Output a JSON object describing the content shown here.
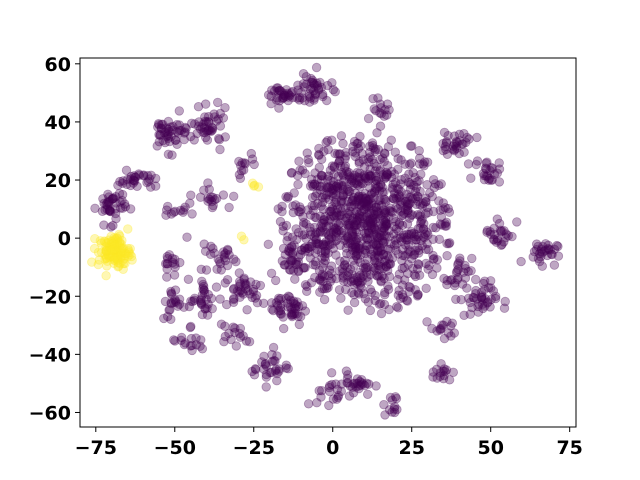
{
  "chart_data": {
    "type": "scatter",
    "title": "",
    "xlabel": "",
    "ylabel": "",
    "xlim": [
      -80,
      77
    ],
    "ylim": [
      -65,
      62
    ],
    "xticks": [
      -75,
      -50,
      -25,
      0,
      25,
      50,
      75
    ],
    "yticks": [
      -60,
      -40,
      -20,
      0,
      20,
      40,
      60
    ],
    "xtick_labels": [
      "−75",
      "−50",
      "−25",
      "0",
      "25",
      "50",
      "75"
    ],
    "ytick_labels": [
      "−60",
      "−40",
      "−20",
      "0",
      "20",
      "40",
      "60"
    ],
    "grid": false,
    "legend": "none",
    "marker_alpha": 0.35,
    "series": [
      {
        "color": "#440154",
        "clusters": [
          {
            "cx": 10,
            "cy": 5,
            "sx": 15,
            "sy": 16,
            "n": 950
          },
          {
            "cx": -70,
            "cy": 11,
            "sx": 2.2,
            "sy": 3,
            "n": 40
          },
          {
            "cx": -62,
            "cy": 20,
            "sx": 3,
            "sy": 1.5,
            "n": 30
          },
          {
            "cx": -52,
            "cy": 36,
            "sx": 3,
            "sy": 3,
            "n": 45
          },
          {
            "cx": -39,
            "cy": 38,
            "sx": 3,
            "sy": 3,
            "n": 45
          },
          {
            "cx": -16,
            "cy": 49,
            "sx": 3,
            "sy": 2,
            "n": 35
          },
          {
            "cx": -6,
            "cy": 51,
            "sx": 3,
            "sy": 3,
            "n": 40
          },
          {
            "cx": 15,
            "cy": 43,
            "sx": 1.5,
            "sy": 2,
            "n": 15
          },
          {
            "cx": 39,
            "cy": 33,
            "sx": 3,
            "sy": 2,
            "n": 30
          },
          {
            "cx": 49,
            "cy": 23,
            "sx": 2,
            "sy": 2,
            "n": 25
          },
          {
            "cx": 53,
            "cy": 2,
            "sx": 2.5,
            "sy": 3,
            "n": 25
          },
          {
            "cx": 66,
            "cy": -5,
            "sx": 2.5,
            "sy": 2,
            "n": 30
          },
          {
            "cx": 46,
            "cy": -21,
            "sx": 3,
            "sy": 3,
            "n": 40
          },
          {
            "cx": 40,
            "cy": -13,
            "sx": 2,
            "sy": 3,
            "n": 25
          },
          {
            "cx": 35,
            "cy": -32,
            "sx": 2,
            "sy": 2,
            "n": 15
          },
          {
            "cx": 34,
            "cy": -46,
            "sx": 2,
            "sy": 2,
            "n": 15
          },
          {
            "cx": 19,
            "cy": -58,
            "sx": 1.5,
            "sy": 2,
            "n": 12
          },
          {
            "cx": 7,
            "cy": -50,
            "sx": 3,
            "sy": 2,
            "n": 30
          },
          {
            "cx": -1,
            "cy": -54,
            "sx": 2,
            "sy": 2,
            "n": 15
          },
          {
            "cx": -20,
            "cy": -44,
            "sx": 3,
            "sy": 3,
            "n": 30
          },
          {
            "cx": -14,
            "cy": -24,
            "sx": 3,
            "sy": 3,
            "n": 45
          },
          {
            "cx": -28,
            "cy": -17,
            "sx": 3,
            "sy": 3,
            "n": 35
          },
          {
            "cx": -40,
            "cy": -22,
            "sx": 3,
            "sy": 4,
            "n": 35
          },
          {
            "cx": -36,
            "cy": -6,
            "sx": 3,
            "sy": 3,
            "n": 25
          },
          {
            "cx": -50,
            "cy": -23,
            "sx": 2,
            "sy": 3,
            "n": 20
          },
          {
            "cx": -51,
            "cy": -8,
            "sx": 1.5,
            "sy": 2.5,
            "n": 15
          },
          {
            "cx": -50,
            "cy": 10,
            "sx": 2,
            "sy": 2,
            "n": 12
          },
          {
            "cx": -38,
            "cy": 14,
            "sx": 3,
            "sy": 2,
            "n": 18
          },
          {
            "cx": -28,
            "cy": 26,
            "sx": 2,
            "sy": 2,
            "n": 12
          },
          {
            "cx": -31,
            "cy": -34,
            "sx": 3,
            "sy": 2,
            "n": 15
          },
          {
            "cx": -46,
            "cy": -36,
            "sx": 3,
            "sy": 2,
            "n": 15
          },
          {
            "cx": -12,
            "cy": -5,
            "sx": 4,
            "sy": 4,
            "n": 40
          }
        ]
      },
      {
        "color": "#fde725",
        "clusters": [
          {
            "cx": -69,
            "cy": -4.5,
            "sx": 2.6,
            "sy": 2.8,
            "n": 110
          },
          {
            "cx": -25,
            "cy": 18,
            "sx": 0.6,
            "sy": 0.6,
            "n": 4
          },
          {
            "cx": -28,
            "cy": 0,
            "sx": 0.5,
            "sy": 0.5,
            "n": 2
          }
        ]
      }
    ]
  }
}
